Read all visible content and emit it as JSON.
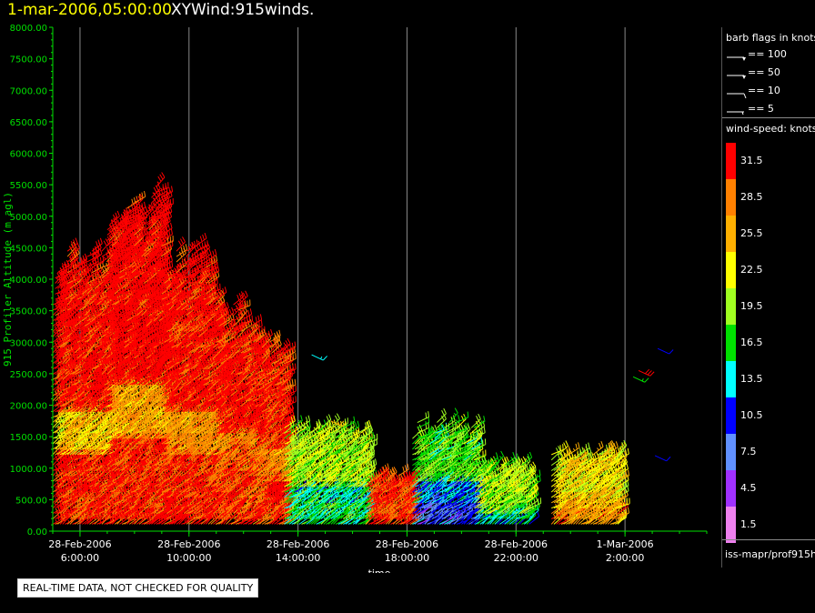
{
  "header": {
    "time": "1-mar-2006,05:00:00",
    "product": "XYWind:915winds."
  },
  "chart_data": {
    "type": "scatter",
    "subtype": "wind-barb time-height plot",
    "title": "1-mar-2006,05:00:00  XYWind:915winds.",
    "xlabel": "time",
    "ylabel": "915 Profiler Altitude (m agl)",
    "y_ticks": [
      "0.00",
      "500.00",
      "1000.00",
      "1500.00",
      "2000.00",
      "2500.00",
      "3000.00",
      "3500.00",
      "4000.00",
      "4500.00",
      "5000.00",
      "5500.00",
      "6000.00",
      "6500.00",
      "7000.00",
      "7500.00",
      "8000.00"
    ],
    "ylim": [
      0,
      8000
    ],
    "x_ticks": [
      {
        "date": "28-Feb-2006",
        "time": "6:00:00"
      },
      {
        "date": "28-Feb-2006",
        "time": "10:00:00"
      },
      {
        "date": "28-Feb-2006",
        "time": "14:00:00"
      },
      {
        "date": "28-Feb-2006",
        "time": "18:00:00"
      },
      {
        "date": "28-Feb-2006",
        "time": "22:00:00"
      },
      {
        "date": "1-Mar-2006",
        "time": "2:00:00"
      }
    ],
    "x_tick_hours": [
      6,
      10,
      14,
      18,
      22,
      26
    ],
    "xlim_hours": [
      5,
      29
    ],
    "grid": "vertical",
    "observation_blocks": [
      {
        "t_start": 5.0,
        "t_end": 7.0,
        "top": 4700,
        "speed_low": 31,
        "speed_mid": 24,
        "speed_high": 32
      },
      {
        "t_start": 7.0,
        "t_end": 9.0,
        "top": 5600,
        "speed_low": 31,
        "speed_mid": 26,
        "speed_high": 33
      },
      {
        "t_start": 9.0,
        "t_end": 11.0,
        "top": 4600,
        "speed_low": 31,
        "speed_mid": 27,
        "speed_high": 32
      },
      {
        "t_start": 11.0,
        "t_end": 12.5,
        "top": 3700,
        "speed_low": 30,
        "speed_mid": 28,
        "speed_high": 32
      },
      {
        "t_start": 12.5,
        "t_end": 13.5,
        "top": 3100,
        "speed_low": 31,
        "speed_mid": 27,
        "speed_high": 31
      },
      {
        "t_start": 13.5,
        "t_end": 16.5,
        "top": 1700,
        "speed_low": 16,
        "speed_mid": 15,
        "speed_high": 20
      },
      {
        "t_start": 16.5,
        "t_end": 18.2,
        "top": 900,
        "speed_low": 31,
        "speed_mid": 30,
        "speed_high": 31
      },
      {
        "t_start": 18.2,
        "t_end": 20.5,
        "top": 1800,
        "speed_low": 9,
        "speed_mid": 12,
        "speed_high": 18
      },
      {
        "t_start": 20.5,
        "t_end": 22.5,
        "top": 1100,
        "speed_low": 14,
        "speed_mid": 18,
        "speed_high": 20
      },
      {
        "t_start": 23.3,
        "t_end": 25.8,
        "top": 1300,
        "speed_low": 27,
        "speed_mid": 25,
        "speed_high": 23
      }
    ],
    "isolated_barbs": [
      {
        "t": 14.5,
        "alt": 2800,
        "speed": 13
      },
      {
        "t": 15.2,
        "alt": 1750,
        "speed": 26
      },
      {
        "t": 26.3,
        "alt": 2450,
        "speed": 17
      },
      {
        "t": 26.5,
        "alt": 2550,
        "speed": 31
      },
      {
        "t": 27.2,
        "alt": 2900,
        "speed": 9
      },
      {
        "t": 27.1,
        "alt": 1200,
        "speed": 10
      }
    ]
  },
  "legend": {
    "barb_title": "barb flags in knots",
    "barbs": [
      {
        "glyph": "pennant",
        "label": "== 100"
      },
      {
        "glyph": "pennant",
        "label": "== 50"
      },
      {
        "glyph": "full",
        "label": "== 10"
      },
      {
        "glyph": "half",
        "label": "== 5"
      }
    ],
    "speed_title": "wind-speed: knots",
    "speed_scale": [
      {
        "label": "31.5",
        "color": "#ff0000"
      },
      {
        "label": "28.5",
        "color": "#ff8000"
      },
      {
        "label": "25.5",
        "color": "#ffb000"
      },
      {
        "label": "22.5",
        "color": "#ffff00"
      },
      {
        "label": "19.5",
        "color": "#a0ff20"
      },
      {
        "label": "16.5",
        "color": "#00e000"
      },
      {
        "label": "13.5",
        "color": "#00ffff"
      },
      {
        "label": "10.5",
        "color": "#0000ff"
      },
      {
        "label": "7.5",
        "color": "#6090ff"
      },
      {
        "label": "4.5",
        "color": "#a030ff"
      },
      {
        "label": "1.5",
        "color": "#ee80ee"
      }
    ]
  },
  "footer": {
    "source": "iss-mapr/prof915h",
    "quality_note": "REAL-TIME DATA, NOT CHECKED FOR QUALITY"
  }
}
